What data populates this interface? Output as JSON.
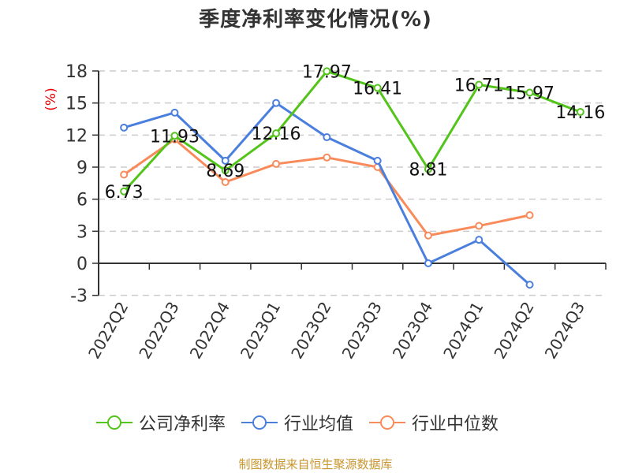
{
  "title": "季度净利率变化情况(%)",
  "source": "制图数据来自恒生聚源数据库",
  "legend": [
    {
      "label": "公司净利率",
      "color": "#52c41a"
    },
    {
      "label": "行业均值",
      "color": "#4a7fdd"
    },
    {
      "label": "行业中位数",
      "color": "#f98b5b"
    }
  ],
  "chart_data": {
    "type": "line",
    "title": "季度净利率变化情况(%)",
    "xlabel": "",
    "ylabel": "(%)",
    "ylim": [
      -3,
      18
    ],
    "yticks": [
      -3,
      0,
      3,
      6,
      9,
      12,
      15,
      18
    ],
    "grid": true,
    "legend_position": "bottom",
    "categories": [
      "2022Q2",
      "2022Q3",
      "2022Q4",
      "2023Q1",
      "2023Q2",
      "2023Q3",
      "2023Q4",
      "2024Q1",
      "2024Q2",
      "2024Q3"
    ],
    "series": [
      {
        "name": "公司净利率",
        "color": "#52c41a",
        "values": [
          6.73,
          11.93,
          8.69,
          12.16,
          17.97,
          16.41,
          8.81,
          16.71,
          15.97,
          14.16
        ],
        "labels": true
      },
      {
        "name": "行业均值",
        "color": "#4a7fdd",
        "values": [
          12.7,
          14.1,
          9.6,
          15.0,
          11.8,
          9.6,
          0.0,
          2.2,
          -2.0,
          null
        ],
        "labels": false
      },
      {
        "name": "行业中位数",
        "color": "#f98b5b",
        "values": [
          8.3,
          11.6,
          7.6,
          9.3,
          9.9,
          9.0,
          2.6,
          3.5,
          4.5,
          null
        ],
        "labels": false
      }
    ]
  }
}
